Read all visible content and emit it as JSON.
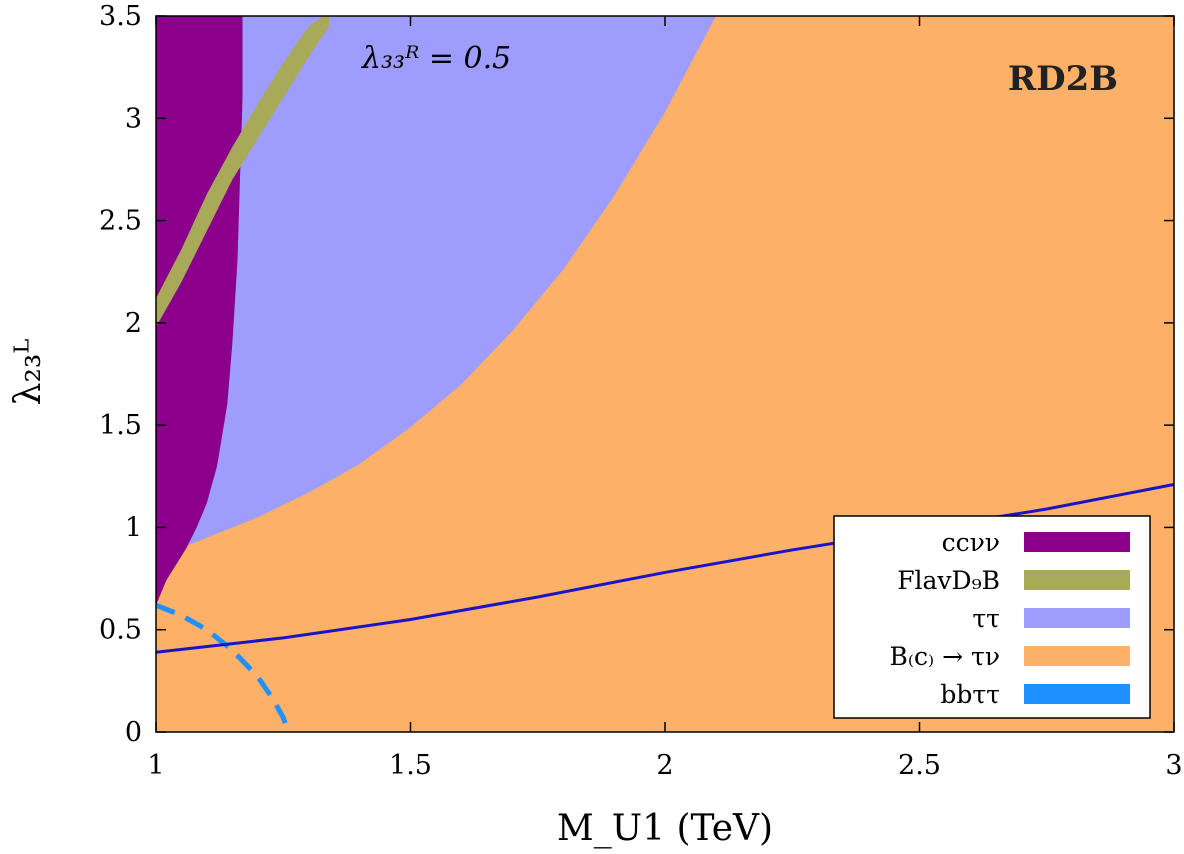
{
  "chart_data": {
    "type": "area",
    "title": "RD2B",
    "annotation": "λ₃₃ᴿ = 0.5",
    "xlabel": "M_U1 (TeV)",
    "ylabel": "λ₂₃ᴸ",
    "xlim": [
      1,
      3
    ],
    "ylim": [
      0,
      3.5
    ],
    "xticks": [
      1,
      1.5,
      2,
      2.5,
      3
    ],
    "xtick_labels": [
      "1",
      "1.5",
      "2",
      "2.5",
      "3"
    ],
    "yticks": [
      0,
      0.5,
      1,
      1.5,
      2,
      2.5,
      3,
      3.5
    ],
    "ytick_labels": [
      "0",
      "0.5",
      "1",
      "1.5",
      "2",
      "2.5",
      "3",
      "3.5"
    ],
    "legend_position": "bottom-right",
    "colors": {
      "ccnunu": "#8b008b",
      "flavd9b": "#a8aa5a",
      "tautau": "#9e9dfd",
      "btaunu": "#fdb068",
      "bbtautau": "#1e90ff",
      "benchmark_line": "#1a14c8"
    },
    "series": [
      {
        "name": "ccνν",
        "style": "region",
        "boundary_x": [
          1.0,
          1.01,
          1.02,
          1.04,
          1.06,
          1.08,
          1.1,
          1.12,
          1.14,
          1.15,
          1.16,
          1.165,
          1.17,
          1.17
        ],
        "boundary_y": [
          0.62,
          0.68,
          0.74,
          0.82,
          0.9,
          1.0,
          1.12,
          1.3,
          1.6,
          1.9,
          2.3,
          2.7,
          3.1,
          3.5
        ]
      },
      {
        "name": "FlavD9B",
        "style": "band",
        "x": [
          1.0,
          1.05,
          1.1,
          1.15,
          1.2,
          1.25,
          1.3,
          1.34
        ],
        "y_low": [
          1.98,
          2.2,
          2.45,
          2.7,
          2.9,
          3.1,
          3.3,
          3.45
        ],
        "y_high": [
          2.12,
          2.36,
          2.63,
          2.86,
          3.07,
          3.27,
          3.45,
          3.52
        ]
      },
      {
        "name": "ττ",
        "style": "region",
        "boundary_x": [
          1.0,
          1.05,
          1.1,
          1.2,
          1.3,
          1.4,
          1.5,
          1.6,
          1.7,
          1.8,
          1.9,
          2.0,
          2.1
        ],
        "boundary_y": [
          0.8,
          0.9,
          0.95,
          1.05,
          1.17,
          1.31,
          1.49,
          1.7,
          1.96,
          2.26,
          2.62,
          3.03,
          3.5
        ]
      },
      {
        "name": "B_(c) → τν",
        "style": "region",
        "boundary_x": [
          1,
          3
        ],
        "boundary_y": [
          0,
          3.5
        ]
      },
      {
        "name": "bbττ",
        "style": "dashed",
        "x": [
          1.0,
          1.05,
          1.1,
          1.15,
          1.2,
          1.23,
          1.25,
          1.26
        ],
        "y": [
          0.62,
          0.57,
          0.5,
          0.4,
          0.27,
          0.16,
          0.07,
          0.0
        ]
      },
      {
        "name": "benchmark",
        "style": "line",
        "x": [
          1.0,
          1.25,
          1.5,
          1.75,
          2.0,
          2.25,
          2.5,
          2.75,
          3.0
        ],
        "y": [
          0.39,
          0.46,
          0.55,
          0.66,
          0.78,
          0.89,
          0.99,
          1.09,
          1.21
        ]
      }
    ],
    "legend": [
      {
        "label": "ccνν",
        "color_key": "ccnunu"
      },
      {
        "label": "FlavD₉B",
        "color_key": "flavd9b"
      },
      {
        "label": "ττ",
        "color_key": "tautau"
      },
      {
        "label": "B₍c₎ → τν",
        "color_key": "btaunu"
      },
      {
        "label": "bbττ",
        "color_key": "bbtautau"
      }
    ]
  }
}
